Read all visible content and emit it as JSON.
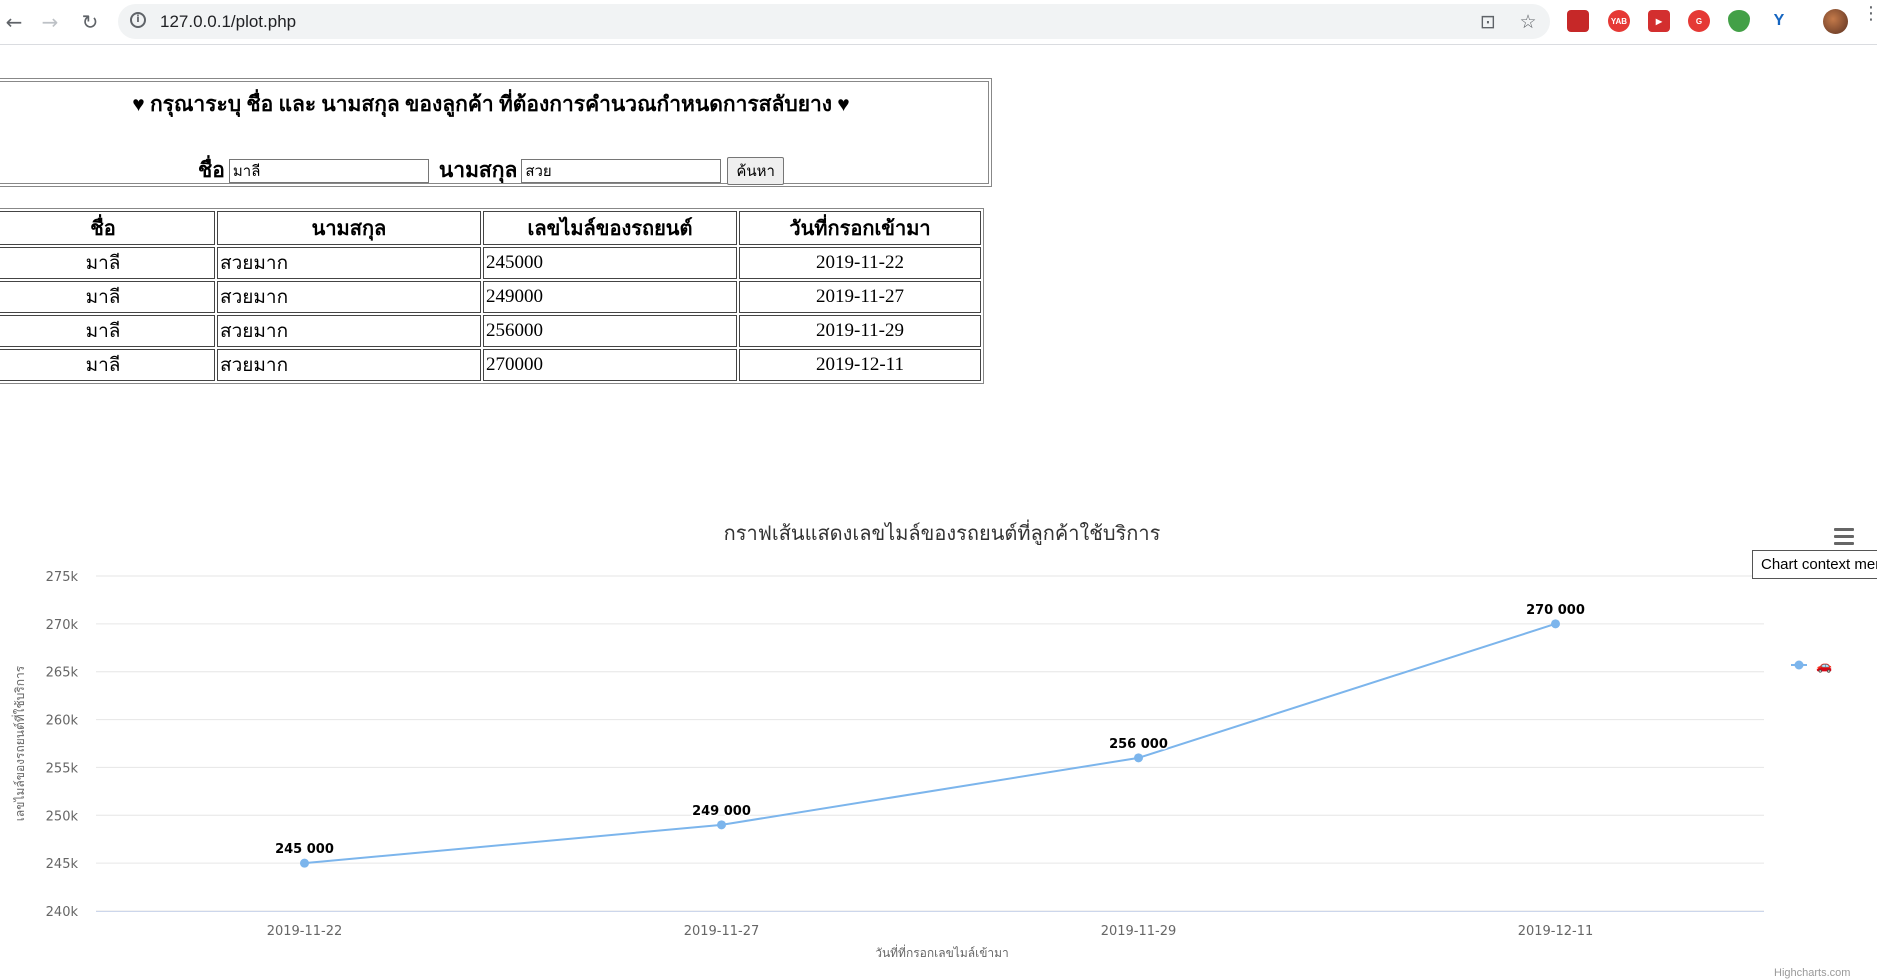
{
  "browser": {
    "url": "127.0.0.1/plot.php",
    "back_icon": "←",
    "forward_icon": "→",
    "reload_icon": "↻",
    "info_icon": "i",
    "translate_icon": "⊡",
    "star_icon": "☆",
    "extensions": [
      {
        "name": "pdf-extension-icon",
        "label": "",
        "color": "#c62828"
      },
      {
        "name": "yab-extension-icon",
        "label": "YAB",
        "color": "#e53935"
      },
      {
        "name": "media-extension-icon",
        "label": "▶",
        "color": "#d32f2f"
      },
      {
        "name": "grammar-extension-icon",
        "label": "G",
        "color": "#e53935"
      },
      {
        "name": "shield-extension-icon",
        "label": "",
        "color": "#43a047"
      },
      {
        "name": "y-extension-icon",
        "label": "Y",
        "color": "#1565c0"
      }
    ]
  },
  "form": {
    "title": "♥ กรุณาระบุ ชื่อ และ นามสกุล ของลูกค้า ที่ต้องการคำนวณกำหนดการสลับยาง ♥",
    "first_name_label": "ชื่อ",
    "first_name_value": "มาลี",
    "last_name_label": "นามสกุล",
    "last_name_value": "สวย",
    "search_button": "ค้นหา"
  },
  "table": {
    "headers": [
      "ชื่อ",
      "นามสกุล",
      "เลขไมล์ของรถยนต์",
      "วันที่กรอกเข้ามา"
    ],
    "rows": [
      [
        "มาลี",
        "สวยมาก",
        "245000",
        "2019-11-22"
      ],
      [
        "มาลี",
        "สวยมาก",
        "249000",
        "2019-11-27"
      ],
      [
        "มาลี",
        "สวยมาก",
        "256000",
        "2019-11-29"
      ],
      [
        "มาลี",
        "สวยมาก",
        "270000",
        "2019-12-11"
      ]
    ]
  },
  "chart_data": {
    "type": "line",
    "title": "กราฟเส้นแสดงเลขไมล์ของรถยนต์ที่ลูกค้าใช้บริการ",
    "xlabel": "วันที่ที่กรอกเลขไมล์เข้ามา",
    "ylabel": "เลขไมล์ของรถยนต์ที่ใช้บริการ",
    "categories": [
      "2019-11-22",
      "2019-11-27",
      "2019-11-29",
      "2019-12-11"
    ],
    "series": [
      {
        "name": "🚗",
        "values": [
          245000,
          249000,
          256000,
          270000
        ],
        "color": "#7cb5ec"
      }
    ],
    "data_labels": [
      "245 000",
      "249 000",
      "256 000",
      "270 000"
    ],
    "ylim": [
      240000,
      275000
    ],
    "yticks": [
      240000,
      245000,
      250000,
      255000,
      260000,
      265000,
      270000,
      275000
    ],
    "ytick_labels": [
      "240k",
      "245k",
      "250k",
      "255k",
      "260k",
      "265k",
      "270k",
      "275k"
    ],
    "grid": true,
    "legend_position": "right"
  },
  "chart_ui": {
    "context_menu_tooltip": "Chart context menu",
    "credits": "Highcharts.com"
  }
}
